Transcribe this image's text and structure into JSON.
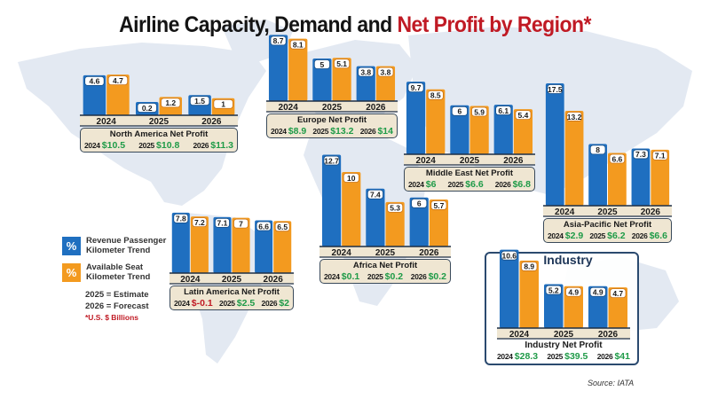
{
  "colors": {
    "rpk": "#1f6fc0",
    "ask": "#f39a1f",
    "profit_positive": "#1f9b48",
    "profit_negative": "#c01a24",
    "title_red": "#c01a24",
    "title_black": "#141414",
    "map": "#e3e9f2"
  },
  "title": {
    "part1": "Airline Capacity, Demand and ",
    "part2": "Net Profit by Region*"
  },
  "legend": {
    "rpk_icon": "%",
    "rpk_label": "Revenue Passenger Kilometer Trend",
    "ask_icon": "%",
    "ask_label": "Available Seat Kilometer Trend",
    "note_estimate": "2025 = Estimate",
    "note_forecast": "2026 = Forecast",
    "note_units": "*U.S. $ Billions"
  },
  "source": "Source: IATA",
  "industry_title": "Industry",
  "chart_data": [
    {
      "type": "bar",
      "region": "North America",
      "categories": [
        "2024",
        "2025",
        "2026"
      ],
      "series": [
        {
          "name": "Revenue Passenger Kilometer Trend",
          "values": [
            4.6,
            0.2,
            1.5
          ]
        },
        {
          "name": "Available Seat Kilometer Trend",
          "values": [
            4.7,
            1.2,
            1
          ]
        }
      ],
      "net_profit_title": "North America Net Profit",
      "net_profit": [
        {
          "year": "2024",
          "value": "$10.5"
        },
        {
          "year": "2025",
          "value": "$10.8"
        },
        {
          "year": "2026",
          "value": "$11.3"
        }
      ]
    },
    {
      "type": "bar",
      "region": "Europe",
      "categories": [
        "2024",
        "2025",
        "2026"
      ],
      "series": [
        {
          "name": "Revenue Passenger Kilometer Trend",
          "values": [
            8.7,
            5,
            3.8
          ]
        },
        {
          "name": "Available Seat Kilometer Trend",
          "values": [
            8.1,
            5.1,
            3.8
          ]
        }
      ],
      "net_profit_title": "Europe Net Profit",
      "net_profit": [
        {
          "year": "2024",
          "value": "$8.9"
        },
        {
          "year": "2025",
          "value": "$13.2"
        },
        {
          "year": "2026",
          "value": "$14"
        }
      ]
    },
    {
      "type": "bar",
      "region": "Middle East",
      "categories": [
        "2024",
        "2025",
        "2026"
      ],
      "series": [
        {
          "name": "Revenue Passenger Kilometer Trend",
          "values": [
            9.7,
            6,
            6.1
          ]
        },
        {
          "name": "Available Seat Kilometer Trend",
          "values": [
            8.5,
            5.9,
            5.4
          ]
        }
      ],
      "net_profit_title": "Middle East Net Profit",
      "net_profit": [
        {
          "year": "2024",
          "value": "$6"
        },
        {
          "year": "2025",
          "value": "$6.6"
        },
        {
          "year": "2026",
          "value": "$6.8"
        }
      ]
    },
    {
      "type": "bar",
      "region": "Asia-Pacific",
      "categories": [
        "2024",
        "2025",
        "2026"
      ],
      "series": [
        {
          "name": "Revenue Passenger Kilometer Trend",
          "values": [
            17.5,
            8,
            7.3
          ]
        },
        {
          "name": "Available Seat Kilometer Trend",
          "values": [
            13.2,
            6.6,
            7.1
          ]
        }
      ],
      "net_profit_title": "Asia-Pacific Net Profit",
      "net_profit": [
        {
          "year": "2024",
          "value": "$2.9"
        },
        {
          "year": "2025",
          "value": "$6.2"
        },
        {
          "year": "2026",
          "value": "$6.6"
        }
      ]
    },
    {
      "type": "bar",
      "region": "Latin America",
      "categories": [
        "2024",
        "2025",
        "2026"
      ],
      "series": [
        {
          "name": "Revenue Passenger Kilometer Trend",
          "values": [
            7.8,
            7.1,
            6.6
          ]
        },
        {
          "name": "Available Seat Kilometer Trend",
          "values": [
            7.2,
            7,
            6.5
          ]
        }
      ],
      "net_profit_title": "Latin America Net Profit",
      "net_profit": [
        {
          "year": "2024",
          "value": "$-0.1"
        },
        {
          "year": "2025",
          "value": "$2.5"
        },
        {
          "year": "2026",
          "value": "$2"
        }
      ]
    },
    {
      "type": "bar",
      "region": "Africa",
      "categories": [
        "2024",
        "2025",
        "2026"
      ],
      "series": [
        {
          "name": "Revenue Passenger Kilometer Trend",
          "values": [
            12.7,
            7.4,
            6
          ]
        },
        {
          "name": "Available Seat Kilometer Trend",
          "values": [
            10,
            5.3,
            5.7
          ]
        }
      ],
      "net_profit_title": "Africa Net Profit",
      "net_profit": [
        {
          "year": "2024",
          "value": "$0.1"
        },
        {
          "year": "2025",
          "value": "$0.2"
        },
        {
          "year": "2026",
          "value": "$0.2"
        }
      ]
    },
    {
      "type": "bar",
      "region": "Industry",
      "categories": [
        "2024",
        "2025",
        "2026"
      ],
      "series": [
        {
          "name": "Revenue Passenger Kilometer Trend",
          "values": [
            10.6,
            5.2,
            4.9
          ]
        },
        {
          "name": "Available Seat Kilometer Trend",
          "values": [
            8.9,
            4.9,
            4.7
          ]
        }
      ],
      "net_profit_title": "Industry Net Profit",
      "net_profit": [
        {
          "year": "2024",
          "value": "$28.3"
        },
        {
          "year": "2025",
          "value": "$39.5"
        },
        {
          "year": "2026",
          "value": "$41"
        }
      ]
    }
  ]
}
